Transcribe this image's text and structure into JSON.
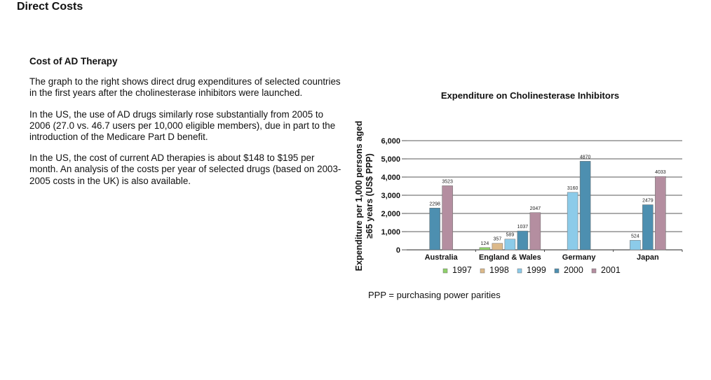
{
  "page": {
    "title": "Direct Costs",
    "section_heading": "Cost of AD Therapy",
    "paragraphs": [
      "The graph to the right shows direct drug expenditures of selected countries in the first years after the cholinesterase inhibitors were launched.",
      "In the US, the use of AD drugs similarly rose substantially from 2005 to 2006 (27.0 vs. 46.7 users per 10,000 eligible members), due in part to the introduction of the Medicare Part D benefit.",
      "In the US, the cost of current AD therapies is about $148 to $195 per month. An analysis of the costs per year of selected drugs (based on 2003-2005 costs in the UK) is also available."
    ],
    "footnote": "PPP = purchasing power parities"
  },
  "chart_data": {
    "type": "bar",
    "title": "Expenditure on Cholinesterase Inhibitors",
    "ylabel_lines": [
      "Expenditure per 1,000 persons aged",
      "≥65 years (US$ PPP)"
    ],
    "xlabel": "",
    "ylim": [
      0,
      6000
    ],
    "yticks": [
      0,
      1000,
      2000,
      3000,
      4000,
      5000,
      6000
    ],
    "ytick_labels": [
      "0",
      "1,000",
      "2,000",
      "3,000",
      "4,000",
      "5,000",
      "6,000"
    ],
    "grid": true,
    "legend_position": "bottom",
    "categories": [
      "Australia",
      "England & Wales",
      "Germany",
      "Japan"
    ],
    "series": [
      {
        "name": "1997",
        "color": "#8fd16a",
        "values": [
          null,
          124,
          null,
          null
        ],
        "labels": [
          "",
          "124",
          "",
          ""
        ]
      },
      {
        "name": "1998",
        "color": "#dcb98a",
        "values": [
          null,
          357,
          null,
          null
        ],
        "labels": [
          "",
          "357",
          "",
          ""
        ]
      },
      {
        "name": "1999",
        "color": "#8ccbe9",
        "values": [
          null,
          589,
          3160,
          524
        ],
        "labels": [
          "",
          "589",
          "3160",
          "524"
        ]
      },
      {
        "name": "2000",
        "color": "#4d8fb0",
        "values": [
          2298,
          1037,
          4870,
          2479
        ],
        "labels": [
          "2298",
          "1037",
          "4870",
          "2479"
        ]
      },
      {
        "name": "2001",
        "color": "#b48ea0",
        "values": [
          3523,
          2047,
          null,
          4033
        ],
        "labels": [
          "3523",
          "2047",
          "",
          "4033"
        ]
      }
    ]
  }
}
